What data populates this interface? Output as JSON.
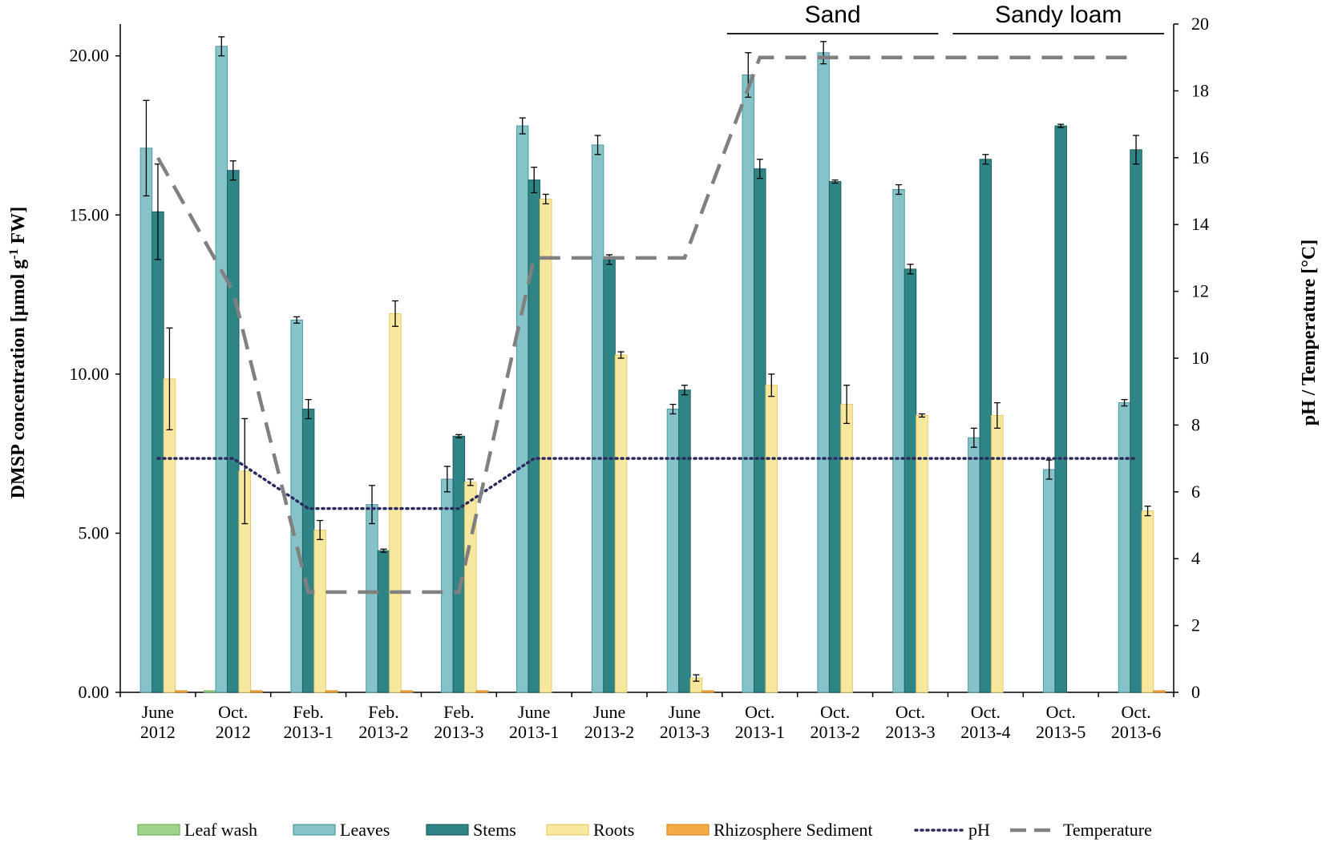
{
  "chart_data": {
    "type": "bar",
    "title": "",
    "ylabel": "DMSP concentration [µmol g",
    "ylabel_sup": "-1",
    "ylabel_tail": " FW]",
    "y2label": "pH / Temperature [°C]",
    "ylim": [
      0,
      21
    ],
    "y2lim": [
      0,
      20
    ],
    "yticks": [
      "0.00",
      "5.00",
      "10.00",
      "15.00",
      "20.00"
    ],
    "y2ticks": [
      "0",
      "2",
      "4",
      "6",
      "8",
      "10",
      "12",
      "14",
      "16",
      "18",
      "20"
    ],
    "categories": [
      [
        "June",
        "2012"
      ],
      [
        "Oct.",
        "2012"
      ],
      [
        "Feb.",
        "2013-1"
      ],
      [
        "Feb.",
        "2013-2"
      ],
      [
        "Feb.",
        "2013-3"
      ],
      [
        "June",
        "2013-1"
      ],
      [
        "June",
        "2013-2"
      ],
      [
        "June",
        "2013-3"
      ],
      [
        "Oct.",
        "2013-1"
      ],
      [
        "Oct.",
        "2013-2"
      ],
      [
        "Oct.",
        "2013-3"
      ],
      [
        "Oct.",
        "2013-4"
      ],
      [
        "Oct.",
        "2013-5"
      ],
      [
        "Oct.",
        "2013-6"
      ]
    ],
    "series": [
      {
        "name": "Leaf wash",
        "color": "#9fd38a",
        "stroke": "#6fb05a",
        "values": [
          0,
          0.05,
          0,
          0,
          0,
          0,
          0,
          0,
          0,
          0,
          0,
          0,
          0,
          0
        ]
      },
      {
        "name": "Leaves",
        "color": "#86c3c9",
        "stroke": "#4e9aa2",
        "values": [
          17.1,
          20.3,
          11.7,
          5.9,
          6.7,
          17.8,
          17.2,
          8.9,
          19.4,
          20.1,
          15.8,
          8.0,
          7.0,
          9.1
        ],
        "errors": [
          1.5,
          0.3,
          0.1,
          0.6,
          0.4,
          0.25,
          0.3,
          0.15,
          0.7,
          0.35,
          0.15,
          0.3,
          0.3,
          0.1
        ]
      },
      {
        "name": "Stems",
        "color": "#2f8586",
        "stroke": "#1d5f60",
        "values": [
          15.1,
          16.4,
          8.9,
          4.45,
          8.05,
          16.1,
          13.6,
          9.5,
          16.45,
          16.05,
          13.3,
          16.75,
          17.8,
          17.05
        ],
        "errors": [
          1.5,
          0.3,
          0.3,
          0.05,
          0.05,
          0.4,
          0.15,
          0.15,
          0.3,
          0.05,
          0.15,
          0.15,
          0.05,
          0.45
        ]
      },
      {
        "name": "Roots",
        "color": "#f8e79f",
        "stroke": "#e6cc6a",
        "values": [
          9.85,
          6.95,
          5.1,
          11.9,
          6.6,
          15.5,
          10.6,
          0.45,
          9.65,
          9.05,
          8.7,
          8.7,
          0,
          5.7
        ],
        "errors": [
          1.6,
          1.65,
          0.3,
          0.4,
          0.1,
          0.15,
          0.1,
          0.1,
          0.35,
          0.6,
          0.05,
          0.4,
          0,
          0.15
        ]
      },
      {
        "name": "Rhizosphere Sediment",
        "color": "#f2ab45",
        "stroke": "#d98a1e",
        "values": [
          0.05,
          0.05,
          0.05,
          0.05,
          0.05,
          0,
          0,
          0.05,
          0,
          0,
          0,
          0,
          0,
          0.05
        ]
      }
    ],
    "lines": [
      {
        "name": "pH",
        "axis": "y2",
        "style": "dotted",
        "color": "#2b2a5e",
        "values": [
          7,
          7,
          5.5,
          5.5,
          5.5,
          7,
          7,
          7,
          7,
          7,
          7,
          7,
          7,
          7
        ]
      },
      {
        "name": "Temperature",
        "axis": "y2",
        "style": "dashed",
        "color": "#808080",
        "values": [
          16,
          12,
          3,
          3,
          3,
          13,
          13,
          13,
          19,
          19,
          19,
          19,
          19,
          19
        ]
      }
    ],
    "annotations": [
      {
        "text": "Sand",
        "from_category": 8,
        "to_category": 10
      },
      {
        "text": "Sandy loam",
        "from_category": 11,
        "to_category": 13
      }
    ],
    "legend": {
      "placement": "bottom",
      "entries": [
        "Leaf wash",
        "Leaves",
        "Stems",
        "Roots",
        "Rhizosphere Sediment",
        "pH",
        "Temperature"
      ]
    }
  }
}
